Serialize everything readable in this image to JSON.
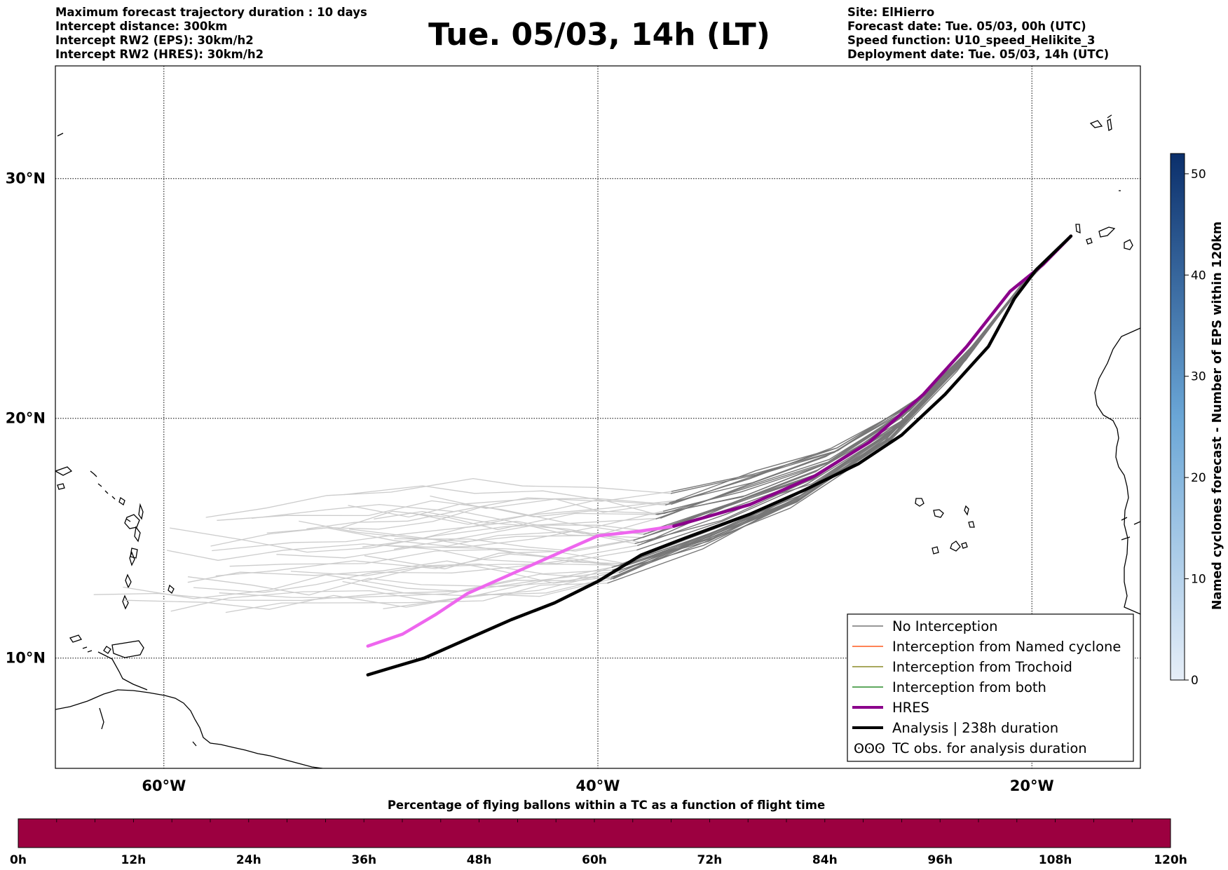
{
  "header": {
    "title": "Tue. 05/03, 14h (LT)",
    "left_info": [
      "Maximum forecast trajectory duration : 10 days",
      "Intercept distance: 300km",
      "Intercept RW2 (EPS):  30km/h2",
      "Intercept RW2 (HRES): 30km/h2"
    ],
    "right_info": [
      "Site: ElHierro",
      "Forecast date: Tue. 05/03, 00h (UTC)",
      "Speed function: U10_speed_Helikite_3",
      "Deployment date: Tue. 05/03, 14h (UTC)"
    ]
  },
  "map": {
    "lon_range": [
      -65,
      -15
    ],
    "lat_range": [
      5.4,
      34.7
    ],
    "gridlines_lon": [
      -60,
      -40,
      -20
    ],
    "gridlines_lat": [
      10,
      20,
      30
    ],
    "lon_labels": [
      "60°W",
      "40°W",
      "20°W"
    ],
    "lat_labels": [
      "10°N",
      "20°N",
      "30°N"
    ],
    "colors": {
      "no_interception": "#777777",
      "named_cyclone": "#ff5a1e",
      "trochoid": "#8c8c28",
      "both": "#2a8c2a",
      "hres": "#8b008b",
      "hres_outside_window": "#ee66ee",
      "analysis": "#000000",
      "trajectory_old": "#cccccc"
    },
    "hres_track": [
      [
        -18.2,
        27.6
      ],
      [
        -19.5,
        26.4
      ],
      [
        -21.0,
        25.3
      ],
      [
        -23.0,
        23.0
      ],
      [
        -25.0,
        21.0
      ],
      [
        -27.5,
        19.0
      ],
      [
        -30.0,
        17.6
      ],
      [
        -33.0,
        16.4
      ],
      [
        -36.5,
        15.5
      ],
      [
        -38.0,
        15.3
      ],
      [
        -40.0,
        15.1
      ],
      [
        -42.0,
        14.3
      ],
      [
        -44.0,
        13.5
      ],
      [
        -46.0,
        12.7
      ],
      [
        -47.5,
        11.8
      ],
      [
        -49.0,
        11.0
      ],
      [
        -50.6,
        10.5
      ]
    ],
    "analysis_track": [
      [
        -18.2,
        27.6
      ],
      [
        -19.8,
        26.2
      ],
      [
        -20.8,
        25.0
      ],
      [
        -22.0,
        23.0
      ],
      [
        -24.0,
        21.0
      ],
      [
        -26.0,
        19.3
      ],
      [
        -28.0,
        18.1
      ],
      [
        -30.5,
        17.0
      ],
      [
        -33.0,
        16.0
      ],
      [
        -36.0,
        15.0
      ],
      [
        -38.0,
        14.3
      ],
      [
        -40.0,
        13.2
      ],
      [
        -42.0,
        12.3
      ],
      [
        -44.0,
        11.6
      ],
      [
        -46.0,
        10.8
      ],
      [
        -48.0,
        10.0
      ],
      [
        -49.5,
        9.6
      ],
      [
        -50.6,
        9.3
      ]
    ]
  },
  "legend": [
    {
      "label": "No Interception",
      "style": "no_interception"
    },
    {
      "label": "Interception from Named cyclone",
      "style": "named_cyclone"
    },
    {
      "label": "Interception from Trochoid",
      "style": "trochoid"
    },
    {
      "label": "Interception from both",
      "style": "both"
    },
    {
      "label": "HRES",
      "style": "hres"
    },
    {
      "label": "Analysis | 238h duration",
      "style": "analysis"
    },
    {
      "label": "TC obs. for analysis duration",
      "style": "tc_symbol"
    }
  ],
  "colorbar_right": {
    "label": "Named cyclones forecast - Number of EPS within 120km",
    "min": 0,
    "max": 52,
    "ticks": [
      "0",
      "10",
      "20",
      "30",
      "40",
      "50"
    ],
    "color_low": "#e6eef8",
    "color_high": "#0b2f6b"
  },
  "colorbar_bottom": {
    "title": "Percentage of flying ballons within a TC as a function of flight time",
    "ticks": [
      "0h",
      "12h",
      "24h",
      "36h",
      "48h",
      "60h",
      "72h",
      "84h",
      "96h",
      "108h",
      "120h"
    ],
    "fill_color": "#9c0040"
  }
}
